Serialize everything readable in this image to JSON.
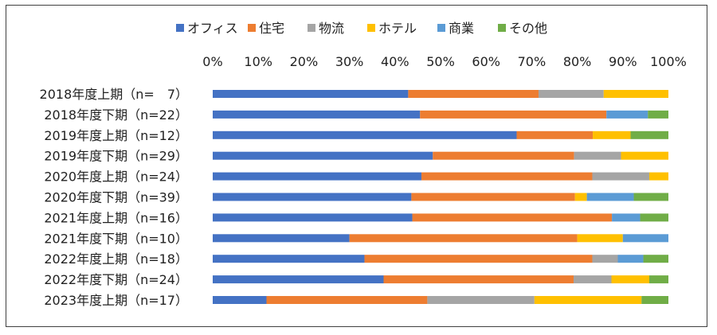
{
  "chart_data": {
    "type": "bar",
    "orientation": "horizontal",
    "stacked": "percent",
    "title": "",
    "xlabel": "",
    "ylabel": "",
    "xlim": [
      0,
      100
    ],
    "x_ticks": [
      "0%",
      "10%",
      "20%",
      "30%",
      "40%",
      "50%",
      "60%",
      "70%",
      "80%",
      "90%",
      "100%"
    ],
    "grid": false,
    "legend_position": "top",
    "categories": [
      "2018年度上期（n=　7）",
      "2018年度下期（n=22）",
      "2019年度上期（n=12）",
      "2019年度下期（n=29）",
      "2020年度上期（n=24）",
      "2020年度下期（n=39）",
      "2021年度上期（n=16）",
      "2021年度下期（n=10）",
      "2022年度上期（n=18）",
      "2022年度下期（n=24）",
      "2023年度上期（n=17）"
    ],
    "series": [
      {
        "name": "オフィス",
        "color": "#4472C4",
        "values": [
          42.9,
          45.5,
          66.7,
          48.3,
          45.8,
          43.6,
          43.8,
          30.0,
          33.3,
          37.5,
          11.8
        ]
      },
      {
        "name": "住宅",
        "color": "#ED7D31",
        "values": [
          28.6,
          40.9,
          16.7,
          31.0,
          37.5,
          35.9,
          43.8,
          50.0,
          50.0,
          41.7,
          35.3
        ]
      },
      {
        "name": "物流",
        "color": "#A5A5A5",
        "values": [
          14.3,
          0,
          0,
          10.3,
          12.5,
          0,
          0,
          0,
          5.6,
          8.3,
          23.5
        ]
      },
      {
        "name": "ホテル",
        "color": "#FFC000",
        "values": [
          14.2,
          0,
          8.3,
          10.4,
          4.2,
          2.6,
          0,
          10.0,
          0,
          8.3,
          23.5
        ]
      },
      {
        "name": "商業",
        "color": "#5B9BD5",
        "values": [
          0,
          9.1,
          0,
          0,
          0,
          10.3,
          6.2,
          10.0,
          5.6,
          0,
          0
        ]
      },
      {
        "name": "その他",
        "color": "#70AD47",
        "values": [
          0,
          4.5,
          8.3,
          0,
          0,
          7.6,
          6.2,
          0,
          5.5,
          4.2,
          5.9
        ]
      }
    ]
  }
}
